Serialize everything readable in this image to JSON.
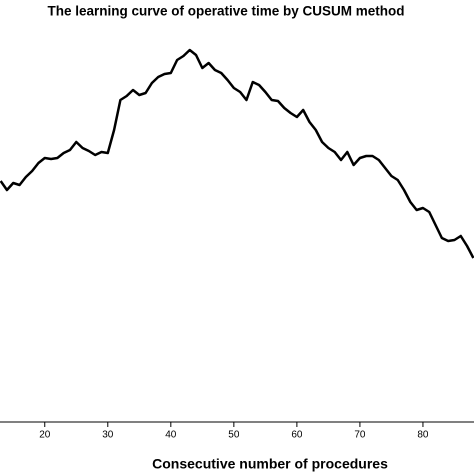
{
  "chart_data": {
    "type": "line",
    "title": "The learning curve of operative time by CUSUM method",
    "x_label": "Consecutive number of procedures",
    "x": [
      13,
      14,
      15,
      16,
      17,
      18,
      19,
      20,
      21,
      22,
      23,
      24,
      25,
      26,
      27,
      28,
      29,
      30,
      31,
      32,
      33,
      34,
      35,
      36,
      37,
      38,
      39,
      40,
      41,
      42,
      43,
      44,
      45,
      46,
      47,
      48,
      49,
      50,
      51,
      52,
      53,
      54,
      55,
      56,
      57,
      58,
      59,
      60,
      61,
      62,
      63,
      64,
      65,
      66,
      67,
      68,
      69,
      70,
      71,
      72,
      73,
      74,
      75,
      76,
      77,
      78,
      79,
      80,
      81,
      82,
      83,
      84,
      85,
      86,
      87,
      88
    ],
    "series": [
      {
        "color": "#000000",
        "values": [
          241,
          232,
          239,
          237,
          245,
          251,
          259,
          264,
          263,
          264,
          269,
          272,
          280,
          274,
          271,
          267,
          270,
          269,
          292,
          322,
          326,
          332,
          327,
          329,
          339,
          345,
          348,
          349,
          362,
          366,
          372,
          367,
          354,
          359,
          352,
          349,
          342,
          334,
          330,
          322,
          340,
          337,
          330,
          322,
          321,
          314,
          309,
          305,
          312,
          300,
          292,
          280,
          274,
          270,
          262,
          270,
          257,
          264,
          266,
          266,
          262,
          254,
          246,
          242,
          232,
          220,
          212,
          214,
          210,
          197,
          184,
          181,
          182,
          186,
          176,
          164
        ]
      }
    ],
    "xlim": [
      12.9,
      88.1
    ],
    "xticks": [
      20,
      30,
      40,
      50,
      60,
      70,
      80
    ],
    "ylim": [
      0,
      382
    ]
  }
}
